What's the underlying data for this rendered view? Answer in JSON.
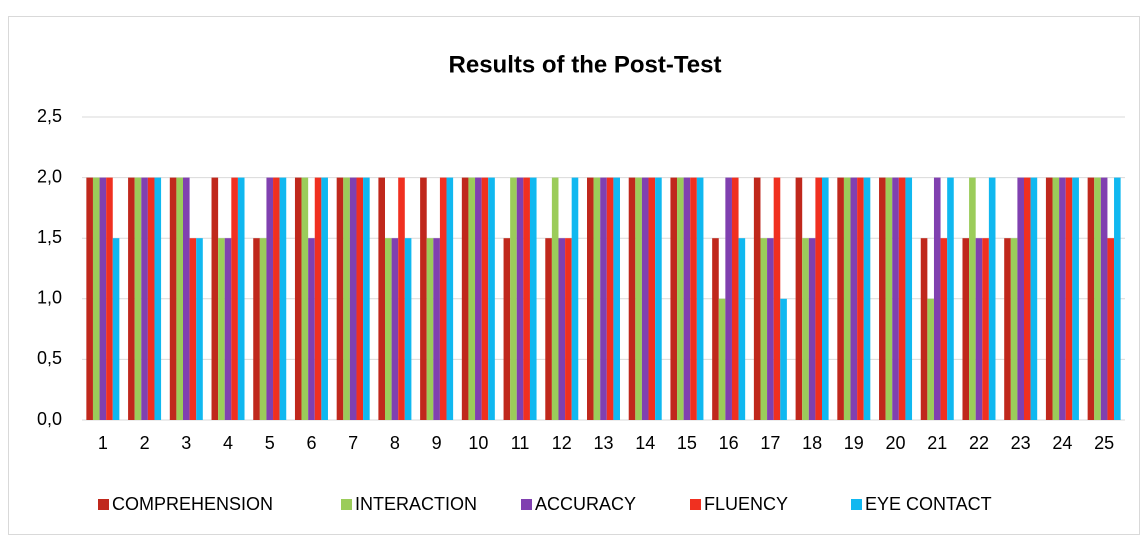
{
  "chart_data": {
    "type": "bar",
    "title": "Results of the Post-Test",
    "categories": [
      "1",
      "2",
      "3",
      "4",
      "5",
      "6",
      "7",
      "8",
      "9",
      "10",
      "11",
      "12",
      "13",
      "14",
      "15",
      "16",
      "17",
      "18",
      "19",
      "20",
      "21",
      "22",
      "23",
      "24",
      "25"
    ],
    "series": [
      {
        "name": "COMPREHENSION",
        "color": "#c0281c",
        "values": [
          2,
          2,
          2,
          2,
          1.5,
          2,
          2,
          2,
          2,
          2,
          1.5,
          1.5,
          2,
          2,
          2,
          1.5,
          2,
          2,
          2,
          2,
          1.5,
          1.5,
          1.5,
          2,
          2
        ]
      },
      {
        "name": "INTERACTION",
        "color": "#9bcc5a",
        "values": [
          2,
          2,
          2,
          1.5,
          1.5,
          2,
          2,
          1.5,
          1.5,
          2,
          2,
          2,
          2,
          2,
          2,
          1,
          1.5,
          1.5,
          2,
          2,
          1,
          2,
          1.5,
          2,
          2
        ]
      },
      {
        "name": "ACCURACY",
        "color": "#8040b0",
        "values": [
          2,
          2,
          2,
          1.5,
          2,
          1.5,
          2,
          1.5,
          1.5,
          2,
          2,
          1.5,
          2,
          2,
          2,
          2,
          1.5,
          1.5,
          2,
          2,
          2,
          1.5,
          2,
          2,
          2
        ]
      },
      {
        "name": "FLUENCY",
        "color": "#f03020",
        "values": [
          2,
          2,
          1.5,
          2,
          2,
          2,
          2,
          2,
          2,
          2,
          2,
          1.5,
          2,
          2,
          2,
          2,
          2,
          2,
          2,
          2,
          1.5,
          1.5,
          2,
          2,
          1.5
        ]
      },
      {
        "name": "EYE CONTACT",
        "color": "#10b8f0",
        "values": [
          1.5,
          2,
          1.5,
          2,
          2,
          2,
          2,
          1.5,
          2,
          2,
          2,
          2,
          2,
          2,
          2,
          1.5,
          1,
          2,
          2,
          2,
          2,
          2,
          2,
          2,
          2
        ]
      }
    ],
    "ylim": [
      0,
      2.5
    ],
    "yticks": [
      {
        "value": 0,
        "label": "0,0"
      },
      {
        "value": 0.5,
        "label": "0,5"
      },
      {
        "value": 1,
        "label": "1,0"
      },
      {
        "value": 1.5,
        "label": "1,5"
      },
      {
        "value": 2,
        "label": "2,0"
      },
      {
        "value": 2.5,
        "label": "2,5"
      }
    ],
    "grid": true,
    "legend": "bottom"
  }
}
